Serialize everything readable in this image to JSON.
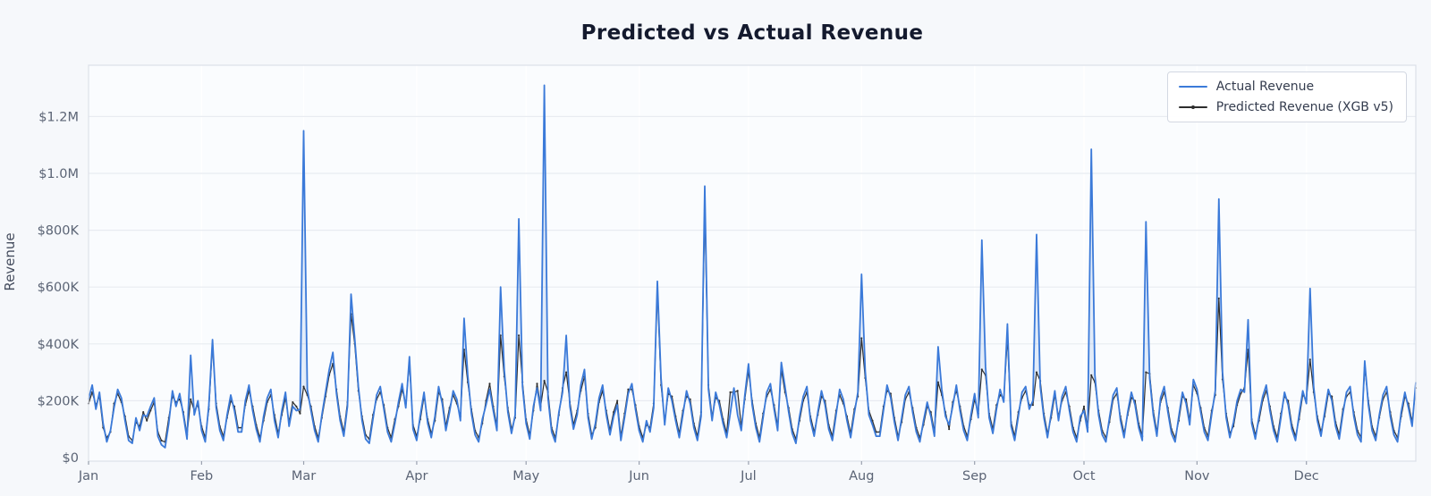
{
  "title": "Predicted vs Actual Revenue",
  "colors": {
    "figure_background": "#f6f8fb",
    "plot_background": "#fafcfe",
    "grid_horizontal": "#e8ebf1",
    "grid_vertical": "#ffffff",
    "spine": "#dce0e8",
    "tick_text": "#5b6475",
    "title_text": "#141a2e",
    "actual_line": "#3b7ad9",
    "predicted_line": "#2d2d2d",
    "fill_between": "#3b7ad9"
  },
  "chart_data": {
    "type": "line",
    "title": "Predicted vs Actual Revenue",
    "xlabel": "",
    "ylabel": "Revenue",
    "x_unit": "day_of_year (365 daily points, Jan 1 - Dec 31)",
    "x_tick_labels": [
      "Jan",
      "Feb",
      "Mar",
      "Apr",
      "May",
      "Jun",
      "Jul",
      "Aug",
      "Sep",
      "Oct",
      "Nov",
      "Dec"
    ],
    "x_tick_days": [
      0,
      31,
      59,
      90,
      120,
      151,
      181,
      212,
      243,
      273,
      304,
      334
    ],
    "y_tick_values_k": [
      0,
      200,
      400,
      600,
      800,
      1000,
      1200
    ],
    "y_tick_labels": [
      "$0",
      "$200K",
      "$400K",
      "$600K",
      "$800K",
      "$1.0M",
      "$1.2M"
    ],
    "y_unit": "USD thousands",
    "ylim_k": [
      0,
      1380
    ],
    "grid": "horizontal gray lines at each y tick; faint white vertical lines at month starts",
    "legend_position": "upper right",
    "fill_between": {
      "between": [
        "Actual Revenue",
        "Predicted Revenue (XGB v5)"
      ],
      "color": "#3b7ad9",
      "opacity": 0.13
    },
    "series": [
      {
        "name": "Actual Revenue",
        "color": "#3b7ad9",
        "line_width": 1.8,
        "marker": "none",
        "values": [
          205,
          255,
          170,
          230,
          120,
          55,
          95,
          175,
          240,
          210,
          130,
          60,
          50,
          140,
          95,
          150,
          145,
          180,
          210,
          75,
          45,
          35,
          120,
          235,
          180,
          225,
          150,
          65,
          360,
          150,
          200,
          95,
          55,
          185,
          415,
          175,
          95,
          60,
          150,
          220,
          165,
          90,
          90,
          200,
          255,
          165,
          100,
          55,
          145,
          210,
          240,
          130,
          70,
          165,
          230,
          110,
          180,
          165,
          170,
          1150,
          240,
          165,
          95,
          55,
          150,
          230,
          310,
          370,
          225,
          130,
          75,
          180,
          575,
          420,
          250,
          130,
          65,
          50,
          135,
          220,
          250,
          170,
          90,
          55,
          120,
          195,
          260,
          175,
          355,
          100,
          60,
          150,
          230,
          120,
          70,
          145,
          250,
          190,
          95,
          160,
          235,
          205,
          130,
          490,
          290,
          155,
          80,
          55,
          135,
          185,
          240,
          165,
          95,
          600,
          310,
          160,
          85,
          150,
          840,
          250,
          120,
          65,
          180,
          245,
          165,
          1310,
          210,
          90,
          55,
          160,
          230,
          430,
          180,
          100,
          150,
          255,
          310,
          140,
          65,
          120,
          210,
          255,
          150,
          80,
          145,
          185,
          60,
          140,
          225,
          260,
          170,
          95,
          55,
          130,
          90,
          175,
          620,
          280,
          115,
          245,
          200,
          130,
          70,
          150,
          235,
          190,
          105,
          60,
          145,
          955,
          240,
          130,
          230,
          185,
          120,
          70,
          155,
          245,
          150,
          95,
          220,
          330,
          185,
          105,
          55,
          140,
          230,
          260,
          170,
          95,
          335,
          250,
          160,
          85,
          50,
          145,
          215,
          250,
          130,
          75,
          160,
          235,
          185,
          100,
          60,
          150,
          240,
          205,
          130,
          70,
          155,
          230,
          645,
          305,
          150,
          115,
          75,
          75,
          165,
          255,
          210,
          125,
          60,
          140,
          220,
          250,
          160,
          90,
          55,
          130,
          195,
          145,
          75,
          390,
          240,
          145,
          115,
          180,
          255,
          165,
          95,
          60,
          150,
          225,
          140,
          765,
          320,
          140,
          85,
          170,
          240,
          195,
          470,
          110,
          60,
          145,
          230,
          250,
          170,
          200,
          785,
          250,
          140,
          70,
          155,
          235,
          130,
          215,
          250,
          165,
          90,
          55,
          145,
          165,
          90,
          1085,
          290,
          150,
          80,
          55,
          140,
          220,
          245,
          130,
          70,
          160,
          230,
          185,
          105,
          60,
          830,
          280,
          150,
          75,
          210,
          250,
          160,
          85,
          55,
          145,
          230,
          190,
          115,
          275,
          240,
          160,
          90,
          60,
          150,
          235,
          910,
          300,
          140,
          70,
          125,
          200,
          240,
          230,
          485,
          120,
          65,
          145,
          215,
          255,
          165,
          95,
          55,
          140,
          230,
          185,
          100,
          60,
          150,
          235,
          190,
          595,
          250,
          130,
          75,
          160,
          240,
          200,
          110,
          65,
          155,
          230,
          250,
          145,
          80,
          55,
          340,
          185,
          95,
          60,
          150,
          220,
          250,
          145,
          80,
          55,
          160,
          230,
          175,
          110,
          265
        ]
      },
      {
        "name": "Predicted Revenue (XGB v5)",
        "color": "#2d2d2d",
        "line_width": 1.2,
        "marker": "dot",
        "values": [
          190,
          230,
          185,
          215,
          105,
          70,
          90,
          190,
          225,
          195,
          145,
          75,
          60,
          125,
          110,
          160,
          130,
          165,
          195,
          90,
          60,
          55,
          140,
          215,
          195,
          205,
          160,
          80,
          205,
          165,
          185,
          110,
          70,
          170,
          395,
          190,
          110,
          75,
          140,
          200,
          180,
          105,
          105,
          185,
          235,
          180,
          115,
          70,
          130,
          195,
          220,
          150,
          85,
          150,
          210,
          125,
          195,
          180,
          155,
          250,
          220,
          180,
          110,
          70,
          140,
          215,
          290,
          330,
          240,
          145,
          90,
          195,
          505,
          400,
          235,
          145,
          80,
          65,
          150,
          205,
          230,
          185,
          105,
          70,
          135,
          180,
          240,
          190,
          330,
          115,
          75,
          135,
          215,
          135,
          85,
          130,
          230,
          205,
          110,
          175,
          220,
          190,
          145,
          380,
          265,
          170,
          95,
          70,
          120,
          200,
          260,
          180,
          110,
          430,
          285,
          175,
          100,
          140,
          430,
          265,
          135,
          80,
          165,
          260,
          180,
          270,
          230,
          105,
          70,
          150,
          245,
          300,
          195,
          115,
          165,
          235,
          285,
          155,
          80,
          105,
          195,
          235,
          165,
          95,
          160,
          200,
          75,
          155,
          240,
          240,
          185,
          110,
          70,
          115,
          105,
          190,
          585,
          255,
          130,
          225,
          215,
          145,
          85,
          165,
          215,
          205,
          120,
          75,
          160,
          870,
          255,
          145,
          210,
          200,
          135,
          85,
          230,
          230,
          235,
          110,
          205,
          305,
          200,
          120,
          70,
          155,
          215,
          240,
          185,
          110,
          310,
          230,
          175,
          100,
          65,
          130,
          200,
          230,
          145,
          90,
          150,
          215,
          200,
          115,
          75,
          165,
          220,
          190,
          145,
          85,
          170,
          215,
          420,
          280,
          165,
          130,
          90,
          90,
          180,
          235,
          225,
          140,
          75,
          125,
          205,
          230,
          175,
          105,
          70,
          115,
          180,
          160,
          90,
          265,
          220,
          160,
          100,
          195,
          235,
          180,
          110,
          75,
          135,
          205,
          155,
          310,
          290,
          155,
          100,
          185,
          220,
          210,
          420,
          125,
          75,
          160,
          210,
          235,
          185,
          185,
          300,
          270,
          155,
          85,
          140,
          220,
          145,
          200,
          230,
          180,
          105,
          70,
          130,
          180,
          105,
          290,
          265,
          165,
          95,
          70,
          125,
          205,
          225,
          145,
          85,
          150,
          210,
          200,
          120,
          75,
          300,
          295,
          165,
          90,
          195,
          230,
          175,
          100,
          70,
          130,
          215,
          205,
          130,
          255,
          225,
          175,
          105,
          75,
          165,
          220,
          560,
          275,
          155,
          85,
          110,
          185,
          225,
          245,
          380,
          135,
          80,
          130,
          200,
          235,
          180,
          110,
          70,
          155,
          215,
          200,
          115,
          75,
          135,
          220,
          205,
          345,
          230,
          145,
          90,
          145,
          225,
          215,
          125,
          80,
          170,
          215,
          230,
          160,
          95,
          70,
          315,
          200,
          110,
          75,
          140,
          205,
          230,
          160,
          95,
          70,
          145,
          215,
          190,
          125,
          245
        ]
      }
    ]
  },
  "legend": {
    "items": [
      {
        "label": "Actual Revenue"
      },
      {
        "label": "Predicted Revenue (XGB v5)"
      }
    ]
  }
}
